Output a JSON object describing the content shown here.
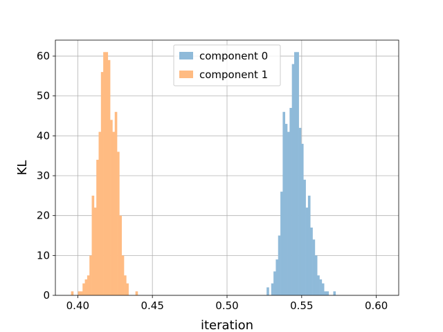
{
  "chart_data": {
    "type": "histogram",
    "title": "",
    "xlabel": "iteration",
    "ylabel": "KL",
    "xlim": [
      0.385,
      0.615
    ],
    "ylim": [
      0,
      64
    ],
    "xticks": [
      0.4,
      0.45,
      0.5,
      0.55,
      0.6
    ],
    "xtick_labels": [
      "0.40",
      "0.45",
      "0.50",
      "0.55",
      "0.60"
    ],
    "yticks": [
      0,
      10,
      20,
      30,
      40,
      50,
      60
    ],
    "ytick_labels": [
      "0",
      "10",
      "20",
      "30",
      "40",
      "50",
      "60"
    ],
    "grid": true,
    "legend": "upper center",
    "series": [
      {
        "name": "component 0",
        "color": "#8fbad9",
        "bin_start": 0.5265,
        "bin_width": 0.00154,
        "counts": [
          2,
          0,
          3,
          6,
          9,
          15,
          26,
          46,
          43,
          41,
          47,
          58,
          61,
          61,
          42,
          38,
          29,
          22,
          25,
          17,
          14,
          10,
          5,
          4,
          3,
          1,
          1,
          0,
          0,
          1
        ]
      },
      {
        "name": "component 1",
        "color": "#ffbb82",
        "bin_start": 0.3955,
        "bin_width": 0.00154,
        "counts": [
          1,
          0,
          0,
          1,
          1,
          3,
          4,
          5,
          10,
          25,
          22,
          34,
          41,
          56,
          61,
          61,
          59,
          44,
          41,
          46,
          36,
          20,
          10,
          5,
          3,
          0,
          0,
          0,
          1
        ]
      }
    ]
  }
}
